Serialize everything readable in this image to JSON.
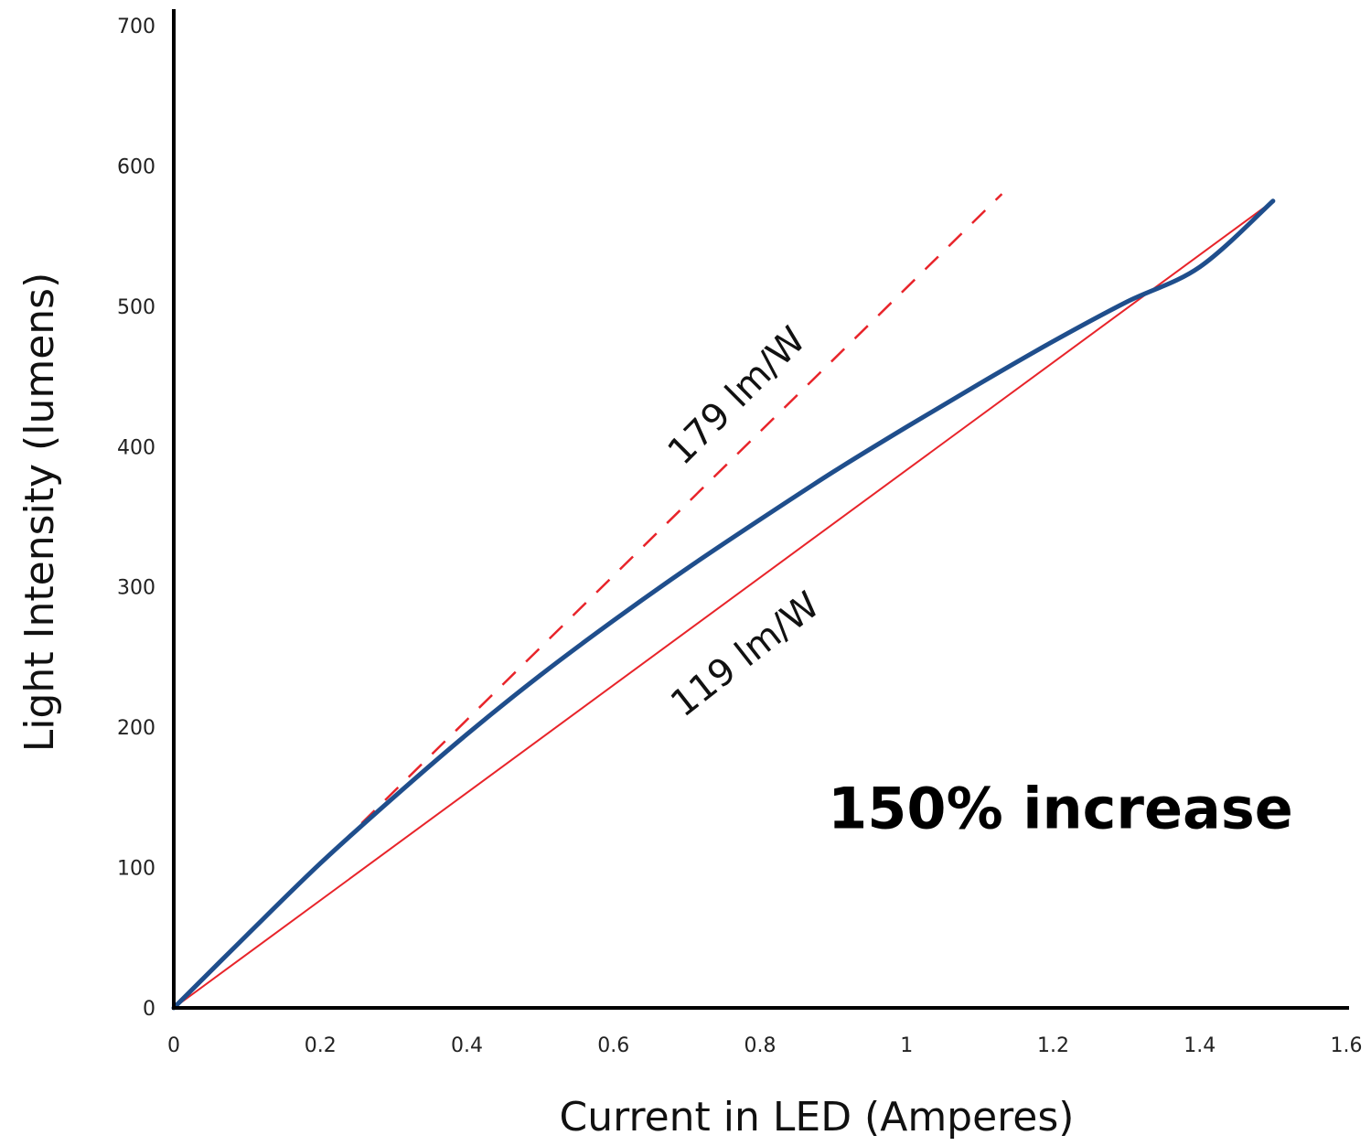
{
  "chart_data": {
    "type": "line",
    "title": "",
    "xlabel": "Current in LED (Amperes)",
    "ylabel": "Light Intensity (lumens)",
    "xlim": [
      0,
      1.6
    ],
    "ylim": [
      0,
      700
    ],
    "x_ticks": [
      "0",
      "0.2",
      "0.4",
      "0.6",
      "0.8",
      "1",
      "1.2",
      "1.4",
      "1.6"
    ],
    "y_ticks": [
      "0",
      "100",
      "200",
      "300",
      "400",
      "500",
      "600",
      "700"
    ],
    "grid": false,
    "legend": "none",
    "series": [
      {
        "color": "#1f4e8c",
        "style": "solid-thick",
        "x": [
          0,
          0.1,
          0.2,
          0.3,
          0.4,
          0.5,
          0.6,
          0.7,
          0.8,
          0.9,
          1.0,
          1.1,
          1.2,
          1.3,
          1.4,
          1.5
        ],
        "y": [
          0,
          52,
          103,
          150,
          195,
          237,
          276,
          313,
          348,
          382,
          414,
          445,
          475,
          503,
          528,
          575
        ]
      },
      {
        "color": "#e8242a",
        "style": "dashed",
        "x": [
          0,
          1.13
        ],
        "y": [
          0,
          580
        ]
      },
      {
        "color": "#e8242a",
        "style": "solid-thin",
        "x": [
          0,
          1.5
        ],
        "y": [
          0,
          575
        ]
      }
    ],
    "annotations": [
      {
        "text": "179 lm/W",
        "x": 0.78,
        "y": 430,
        "rotation": -45
      },
      {
        "text": "119 lm/W",
        "x": 0.79,
        "y": 245,
        "rotation": -38
      },
      {
        "text": "150% increase",
        "x": 1.21,
        "y": 128,
        "rotation": 0
      }
    ]
  }
}
